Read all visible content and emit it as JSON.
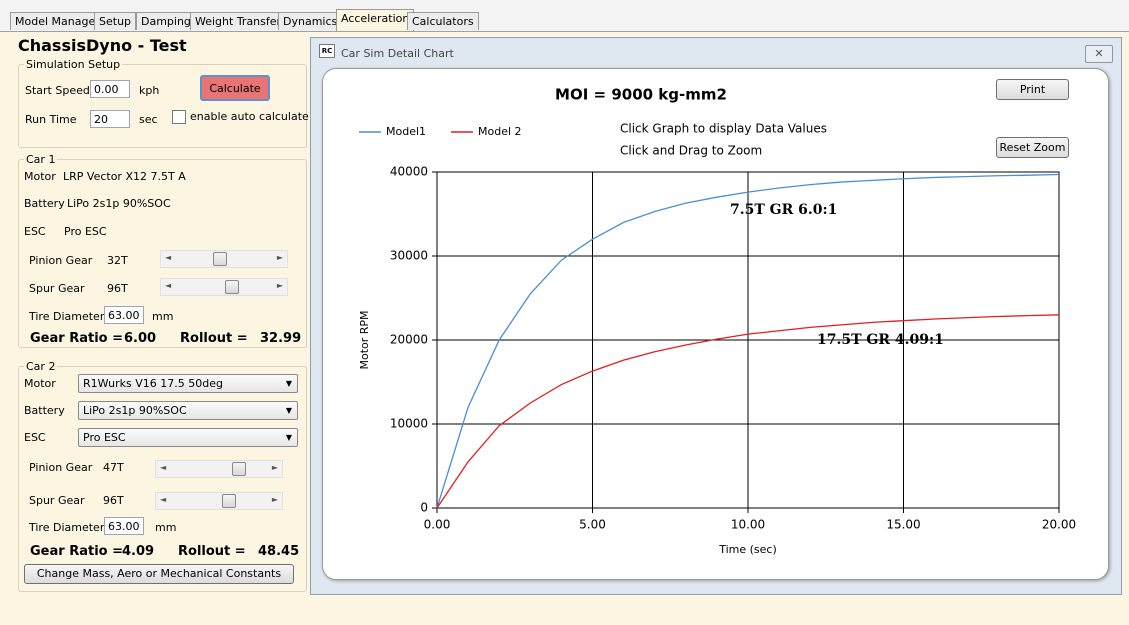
{
  "tabs": [
    "Model Manager",
    "Setup",
    "Damping",
    "Weight Transfer",
    "Dynamics",
    "Acceleration",
    "Calculators"
  ],
  "panel_title": "ChassisDyno - Test",
  "simulation_setup": {
    "title": "Simulation Setup",
    "start_speed_label": "Start Speed",
    "start_speed": "0.00",
    "start_speed_unit": "kph",
    "run_time_label": "Run Time",
    "run_time": "20",
    "run_time_unit": "sec",
    "calculate": "Calculate",
    "auto_calculate": "enable auto calculate"
  },
  "car1": {
    "title": "Car 1",
    "motor_label": "Motor",
    "motor": "LRP Vector X12 7.5T A",
    "battery_label": "Battery",
    "battery": "LiPo 2s1p 90%SOC",
    "esc_label": "ESC",
    "esc": "Pro ESC",
    "pinion_label": "Pinion Gear",
    "pinion": "32T",
    "spur_label": "Spur Gear",
    "spur": "96T",
    "tire_label": "Tire Diameter",
    "tire": "63.00",
    "tire_unit": "mm",
    "gear_ratio_label": "Gear Ratio =",
    "gear_ratio": "6.00",
    "rollout_label": "Rollout =",
    "rollout": "32.99"
  },
  "car2": {
    "title": "Car 2",
    "motor_label": "Motor",
    "motor": "R1Wurks V16 17.5 50deg",
    "battery_label": "Battery",
    "battery": "LiPo 2s1p 90%SOC",
    "esc_label": "ESC",
    "esc": "Pro ESC",
    "pinion_label": "Pinion Gear",
    "pinion": "47T",
    "spur_label": "Spur Gear",
    "spur": "96T",
    "tire_label": "Tire Diameter",
    "tire": "63.00",
    "tire_unit": "mm",
    "gear_ratio_label": "Gear Ratio =",
    "gear_ratio": "4.09",
    "rollout_label": "Rollout =",
    "rollout": "48.45",
    "constants_button": "Change Mass, Aero or Mechanical Constants"
  },
  "chart_window": {
    "title": "Car Sim Detail Chart",
    "print": "Print",
    "reset_zoom": "Reset Zoom",
    "instructions": [
      "Click Graph to display Data Values",
      "Click and Drag to Zoom"
    ]
  },
  "chart_data": {
    "type": "line",
    "title": "MOI = 9000 kg-mm2",
    "x_label": "Time (sec)",
    "y_label": "Motor RPM",
    "x": [
      0,
      1,
      2,
      3,
      4,
      5,
      6,
      7,
      8,
      9,
      10,
      11,
      12,
      13,
      14,
      15,
      16,
      17,
      18,
      19,
      20
    ],
    "series": [
      {
        "name": "Model1",
        "color": "#4a8fd6",
        "values": [
          0,
          12000,
          20000,
          25500,
          29500,
          32000,
          34000,
          35300,
          36300,
          37000,
          37600,
          38100,
          38500,
          38800,
          39000,
          39200,
          39350,
          39450,
          39550,
          39620,
          39700
        ]
      },
      {
        "name": "Model 2",
        "color": "#e02020",
        "values": [
          0,
          5500,
          9800,
          12500,
          14700,
          16300,
          17600,
          18600,
          19400,
          20100,
          20700,
          21100,
          21500,
          21800,
          22100,
          22300,
          22500,
          22650,
          22800,
          22900,
          23000
        ]
      }
    ],
    "xlim": [
      0,
      20
    ],
    "ylim": [
      0,
      40000
    ],
    "xticks": [
      {
        "value": 0,
        "label": "0.00"
      },
      {
        "value": 5,
        "label": "5.00"
      },
      {
        "value": 10,
        "label": "10.00"
      },
      {
        "value": 15,
        "label": "15.00"
      },
      {
        "value": 20,
        "label": "20.00"
      }
    ],
    "yticks": [
      0,
      10000,
      20000,
      30000,
      40000
    ],
    "grid": true,
    "legend": "top-left",
    "annotations": [
      "7.5T GR 6.0:1",
      "17.5T GR 4.09:1"
    ]
  }
}
